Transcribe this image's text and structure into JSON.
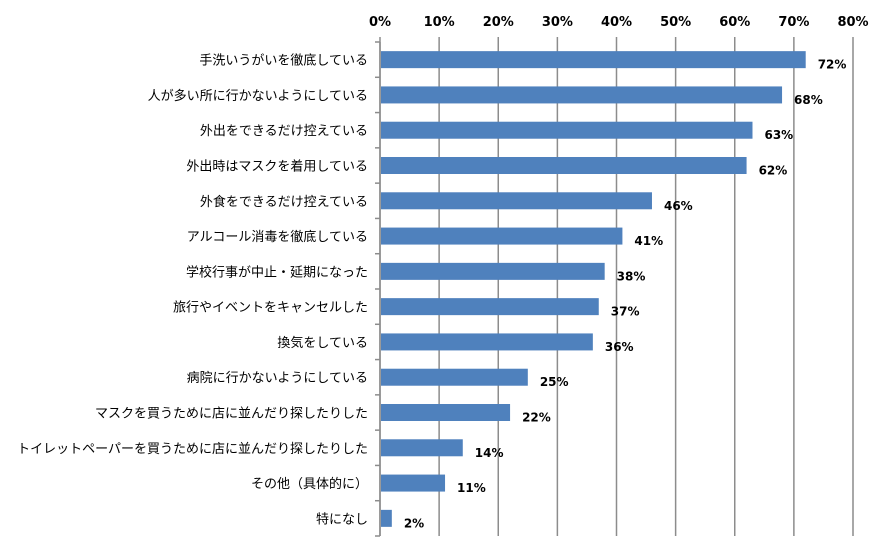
{
  "chart_data": {
    "type": "bar",
    "orientation": "horizontal",
    "title": "",
    "xlabel": "",
    "ylabel": "",
    "xlim": [
      0,
      80
    ],
    "x_ticks": [
      0,
      10,
      20,
      30,
      40,
      50,
      60,
      70,
      80
    ],
    "x_tick_labels": [
      "0%",
      "10%",
      "20%",
      "30%",
      "40%",
      "50%",
      "60%",
      "70%",
      "80%"
    ],
    "grid": true,
    "bar_color": "#4F81BD",
    "categories": [
      "手洗いうがいを徹底している",
      "人が多い所に行かないようにしている",
      "外出をできるだけ控えている",
      "外出時はマスクを着用している",
      "外食をできるだけ控えている",
      "アルコール消毒を徹底している",
      "学校行事が中止・延期になった",
      "旅行やイベントをキャンセルした",
      "換気をしている",
      "病院に行かないようにしている",
      "マスクを買うために店に並んだり探したりした",
      "トイレットペーパーを買うために店に並んだり探したりした",
      "その他（具体的に）",
      "特になし"
    ],
    "values": [
      72,
      68,
      63,
      62,
      46,
      41,
      38,
      37,
      36,
      25,
      22,
      14,
      11,
      2
    ],
    "value_labels": [
      "72%",
      "68%",
      "63%",
      "62%",
      "46%",
      "41%",
      "38%",
      "37%",
      "36%",
      "25%",
      "22%",
      "14%",
      "11%",
      "2%"
    ]
  }
}
